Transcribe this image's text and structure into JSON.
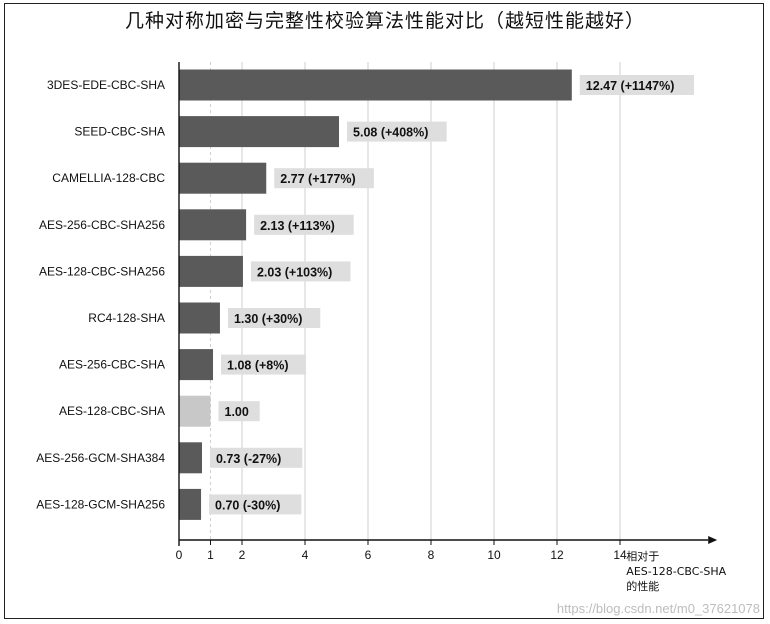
{
  "chart_data": {
    "type": "bar",
    "orientation": "horizontal",
    "title": "几种对称加密与完整性校验算法性能对比（越短性能越好）",
    "xlabel": [
      "相对于",
      "AES-128-CBC-SHA",
      "的性能"
    ],
    "ylabel": "",
    "xlim": [
      0,
      16
    ],
    "xticks": [
      0,
      1,
      2,
      4,
      6,
      8,
      10,
      12,
      14
    ],
    "categories": [
      "3DES-EDE-CBC-SHA",
      "SEED-CBC-SHA",
      "CAMELLIA-128-CBC",
      "AES-256-CBC-SHA256",
      "AES-128-CBC-SHA256",
      "RC4-128-SHA",
      "AES-256-CBC-SHA",
      "AES-128-CBC-SHA",
      "AES-256-GCM-SHA384",
      "AES-128-GCM-SHA256"
    ],
    "values": [
      12.47,
      5.08,
      2.77,
      2.13,
      2.03,
      1.3,
      1.08,
      1.0,
      0.73,
      0.7
    ],
    "labels": [
      "12.47 (+1147%)",
      "5.08 (+408%)",
      "2.77 (+177%)",
      "2.13 (+113%)",
      "2.03 (+103%)",
      "1.30 (+30%)",
      "1.08 (+8%)",
      "1.00",
      "0.73 (-27%)",
      "0.70 (-30%)"
    ],
    "baseline_category": "AES-128-CBC-SHA",
    "colors": {
      "bar": "#5a5a5a",
      "baseline_bar": "#c8c8c8",
      "label_bg": "#dedede",
      "grid": "#cfcfcf"
    },
    "grid": true
  },
  "watermark": "https://blog.csdn.net/m0_37621078"
}
